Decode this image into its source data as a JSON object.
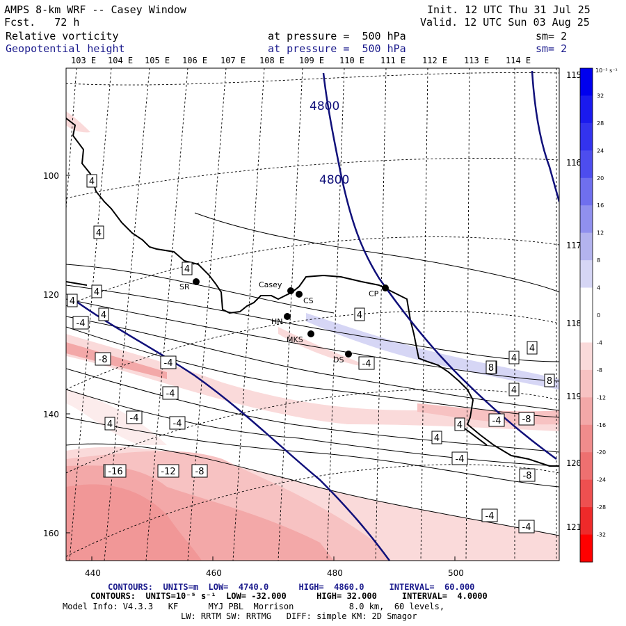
{
  "header": {
    "model": "AMPS 8-km WRF -- Casey Window",
    "fcst": "Fcst.   72 h",
    "init": "Init. 12 UTC Thu 31 Jul 25",
    "valid": "Valid. 12 UTC Sun 03 Aug 25",
    "field1": "Relative vorticity",
    "field2": "Geopotential height",
    "pressure1": "at pressure =  500 hPa",
    "pressure2": "at pressure =  500 hPa",
    "sm1": "sm= 2",
    "sm2": "sm= 2"
  },
  "top_lon_labels": [
    "103 E",
    "104 E",
    "105 E",
    "106 E",
    "107 E",
    "108 E",
    "109 E",
    "110 E",
    "111 E",
    "112 E",
    "113 E",
    "114 E"
  ],
  "right_lon_labels": [
    "115 E",
    "116 E",
    "117 E",
    "118 E",
    "119 E",
    "120 E",
    "121 E"
  ],
  "x_ticks": [
    "440",
    "460",
    "480",
    "500"
  ],
  "y_ticks": [
    "100",
    "120",
    "140",
    "160"
  ],
  "stations": [
    "SR",
    "Casey",
    "CS",
    "CP",
    "HN",
    "MKS",
    "DS"
  ],
  "height_contour_labels": [
    "4800",
    "4800"
  ],
  "vort_labels": [
    "4",
    "4",
    "4",
    "4",
    "4",
    "4",
    "4",
    "4",
    "4",
    "4",
    "4",
    "4",
    "4",
    "4",
    "8",
    "8",
    "-4",
    "-4",
    "-4",
    "-4",
    "-4",
    "-4",
    "-4",
    "-4",
    "-4",
    "-4",
    "-4",
    "-8",
    "-8",
    "-8",
    "-12",
    "-16",
    "-8"
  ],
  "colorbar": {
    "unit": "10⁻⁵ s⁻¹",
    "labels": [
      "32",
      "28",
      "24",
      "20",
      "16",
      "12",
      "8",
      "4",
      "0",
      "-4",
      "-8",
      "-12",
      "-16",
      "-20",
      "-24",
      "-28",
      "-32"
    ],
    "colors": [
      "#0000ee",
      "#1a1aee",
      "#3333ee",
      "#4d4dee",
      "#6f6fee",
      "#9090ee",
      "#b3b3ee",
      "#d6d6f5",
      "#ffffff",
      "#ffffff",
      "#fadada",
      "#f7c2c2",
      "#f3a8a8",
      "#f08c8c",
      "#ee7070",
      "#ee5050",
      "#ee2a2a",
      "#ff0000"
    ]
  },
  "footer": {
    "line1_label": "CONTOURS:  UNITS=m  LOW=  4740.0      HIGH=  4860.0     INTERVAL=  60.000",
    "line2_label": "CONTOURS:  UNITS=10⁻⁵ s⁻¹  LOW= -32.000      HIGH= 32.000     INTERVAL=  4.0000",
    "line3": "Model Info: V4.3.3   KF      MYJ PBL  Morrison           8.0 km,  60 levels,",
    "line4": "LW: RRTM SW: RRTMG   DIFF: simple KM: 2D Smagor"
  },
  "colors": {
    "height_contour": "#10107a",
    "vort_contour": "#000000",
    "coast": "#000000",
    "positive_shade": "#d6d6f5",
    "negative_shade": "#fadada"
  }
}
